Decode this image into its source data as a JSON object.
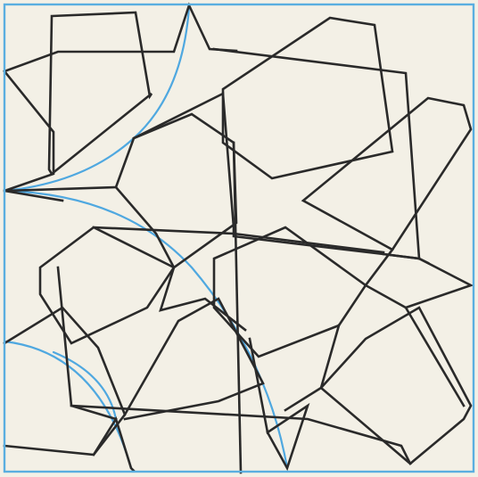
{
  "diagram": {
    "kind": "geometric-tiling-pattern",
    "colors": {
      "paper": "#f3f0e6",
      "frame": "#5aaee0",
      "construction_arc": "#4fa8e0",
      "pattern_line": "#2a2a2a"
    },
    "elements": [
      {
        "name": "frame-border",
        "role": "square tile boundary"
      },
      {
        "name": "construction-arcs",
        "role": "compass construction guides"
      },
      {
        "name": "star-pentagon-lines",
        "role": "interlaced star and pentagon pattern"
      }
    ]
  }
}
